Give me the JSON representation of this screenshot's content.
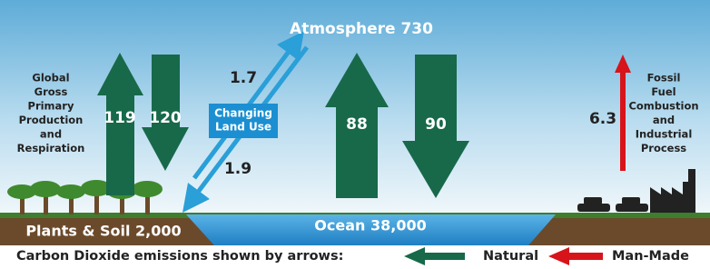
{
  "atmosphere": "Atmosphere 730",
  "plants_soil": "Plants & Soil 2,000",
  "ocean": "Ocean 38,000",
  "primary_production_label": [
    "Global",
    "Gross",
    "Primary",
    "Production",
    "and",
    "Respiration"
  ],
  "fossil_label": [
    "Fossil",
    "Fuel",
    "Combustion",
    "and",
    "Industrial",
    "Process"
  ],
  "land_use_label": [
    "Changing",
    "Land Use"
  ],
  "flows": {
    "land_up": "119",
    "land_down": "120",
    "land_use_up": "1.7",
    "land_use_down": "1.9",
    "ocean_up": "88",
    "ocean_down": "90",
    "fossil": "6.3"
  },
  "legend": {
    "caption": "Carbon Dioxide emissions shown by arrows:",
    "natural": "Natural",
    "man_made": "Man-Made"
  }
}
